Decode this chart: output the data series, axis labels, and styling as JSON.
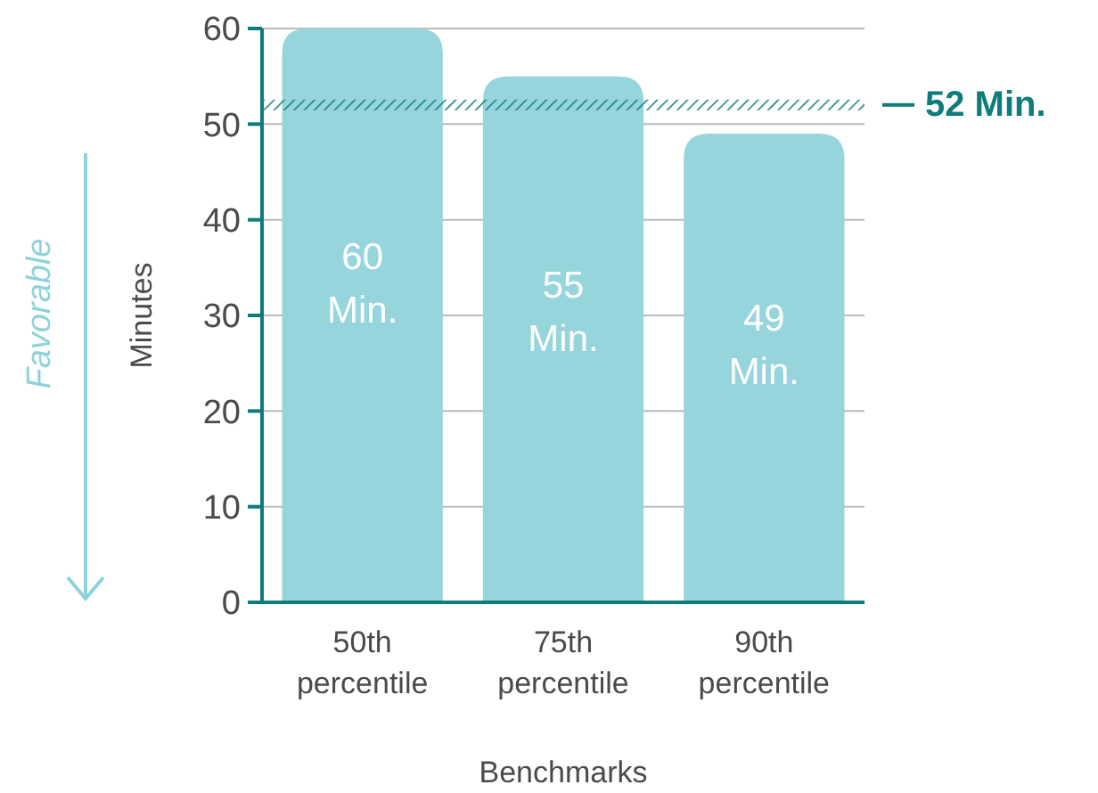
{
  "chart_data": {
    "type": "bar",
    "xlabel": "Benchmarks",
    "ylabel": "Minutes",
    "categories": [
      "50th percentile",
      "75th percentile",
      "90th percentile"
    ],
    "values": [
      60,
      55,
      49
    ],
    "color": "#96d5dc",
    "value_labels": [
      "60 Min.",
      "55 Min.",
      "49 Min."
    ],
    "ylim": [
      0,
      60
    ],
    "yticks": [
      0,
      10,
      20,
      30,
      40,
      50,
      60
    ],
    "grid": "y",
    "ref_lines": [
      {
        "axis": "y",
        "value": 52,
        "label": "52 Min.",
        "color": "#0e7c7b"
      }
    ],
    "annotations": [
      "Favorable"
    ]
  }
}
